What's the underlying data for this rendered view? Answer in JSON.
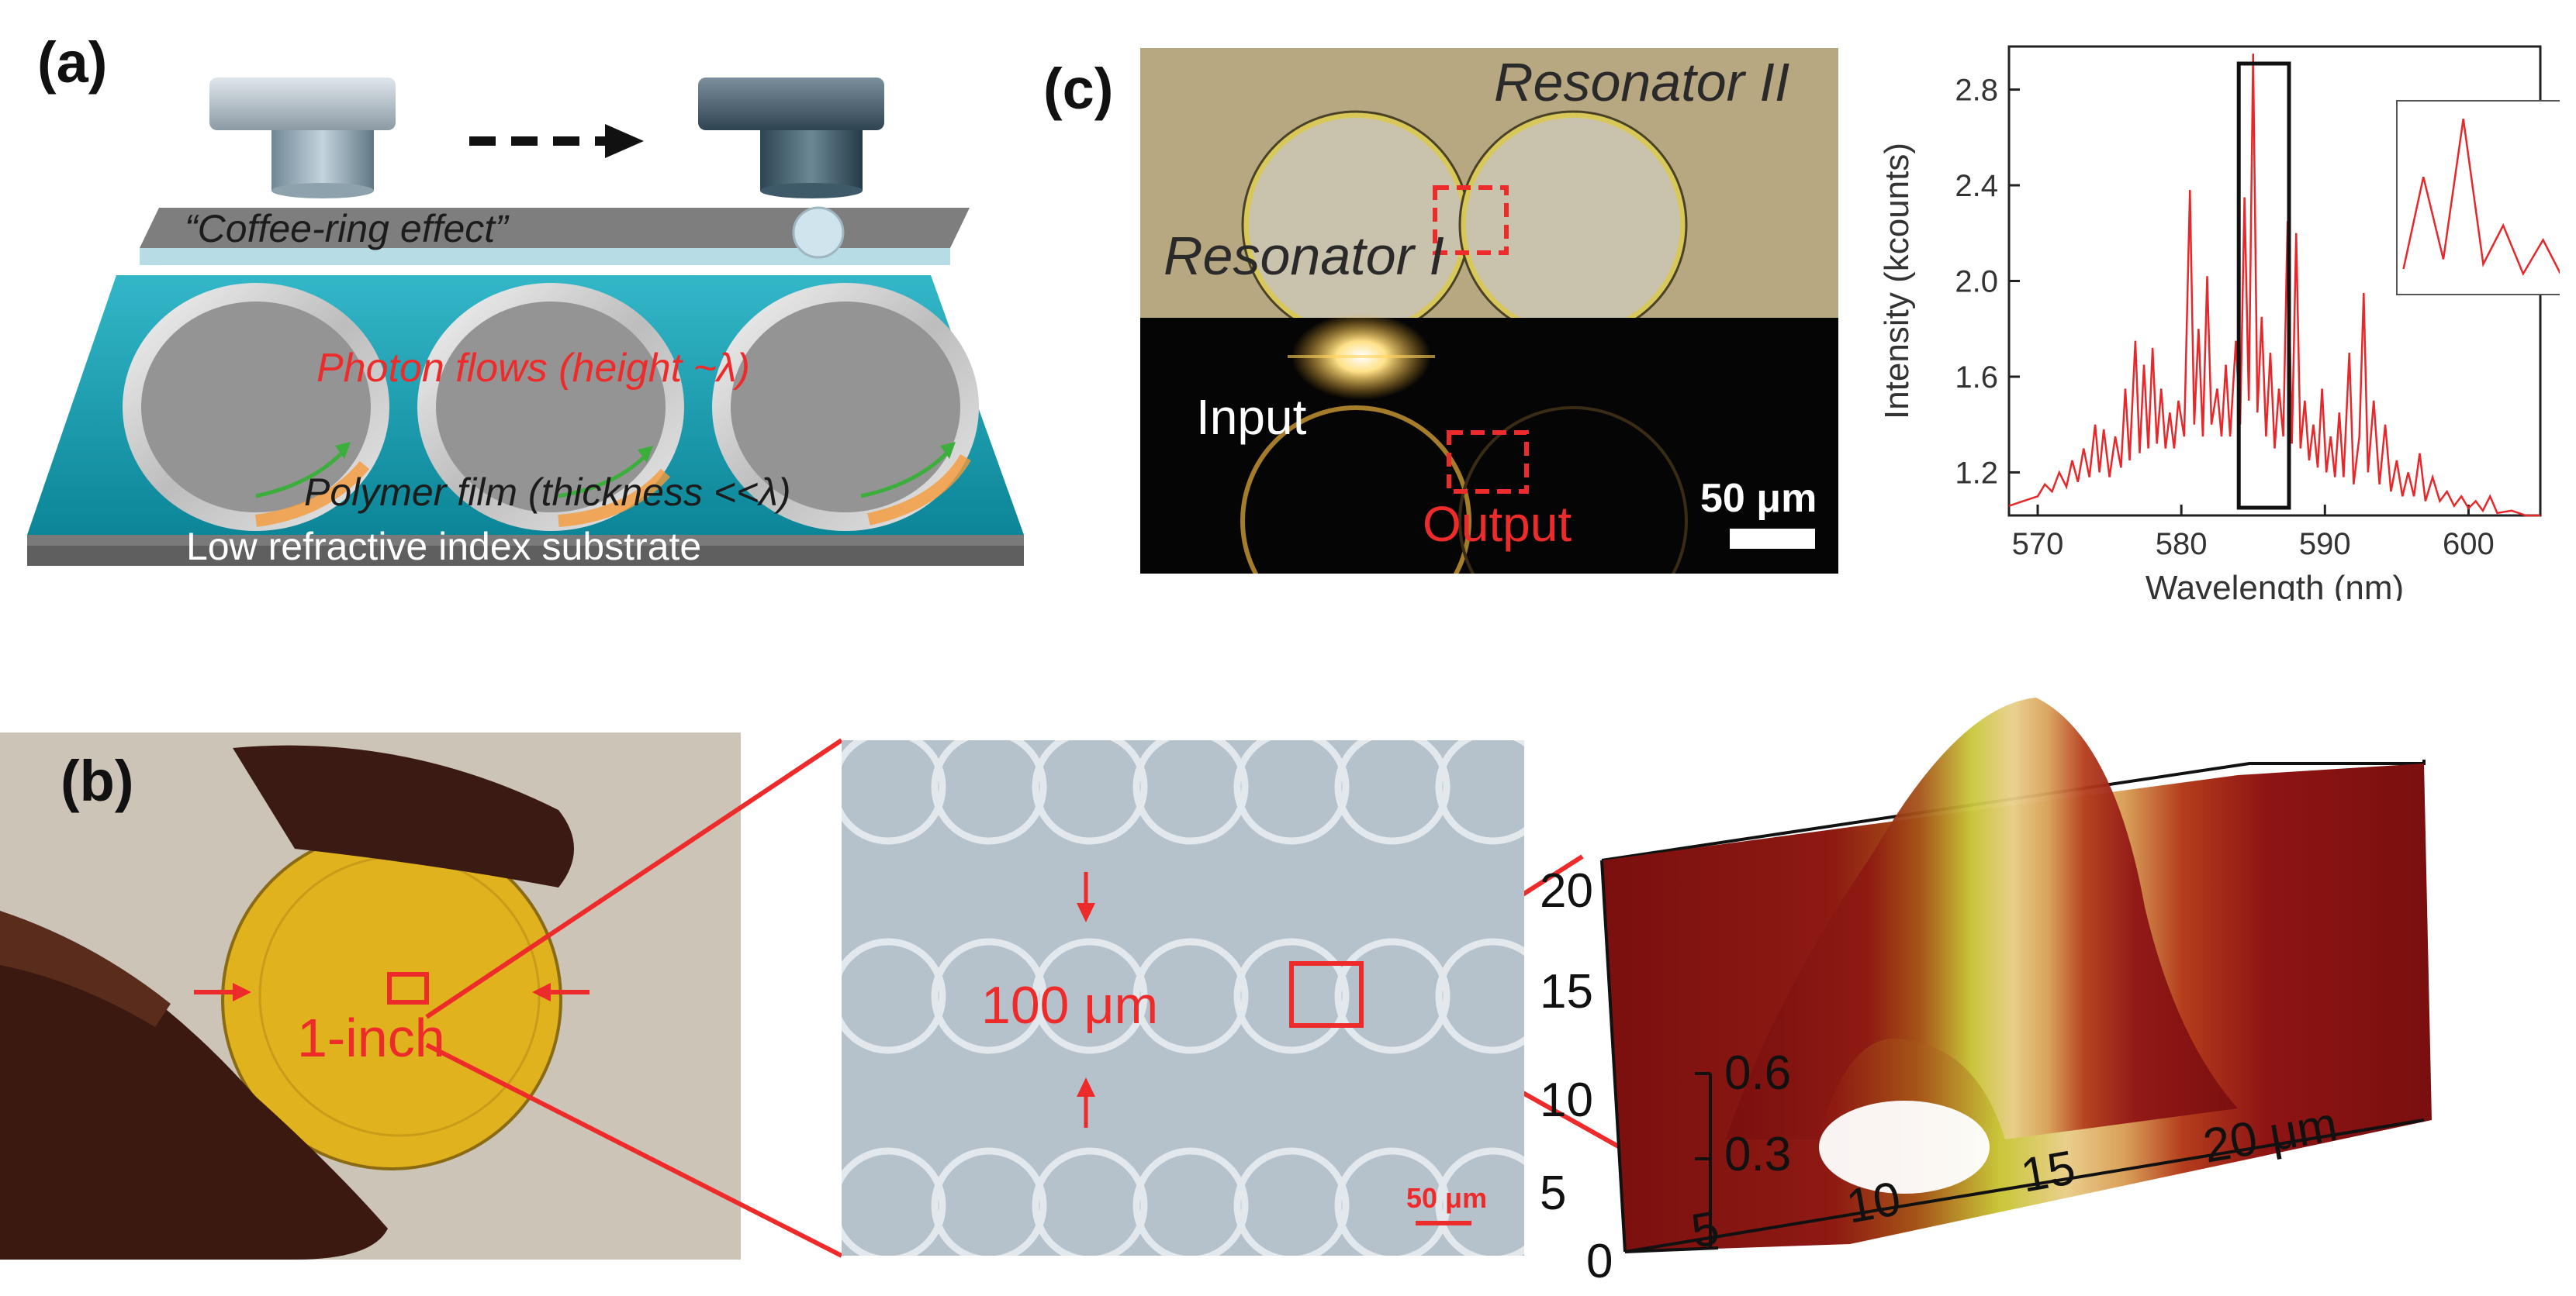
{
  "panel_a": {
    "label": "(a)",
    "coffee_ring": "“Coffee-ring effect”",
    "photon_flows": "Photon flows (height ~λ)",
    "polymer_film": "Polymer film (thickness <<λ)",
    "substrate": "Low refractive index substrate"
  },
  "panel_b": {
    "label": "(b)",
    "wafer_size": "1-inch",
    "pitch": "100 μm",
    "scale_bar": "50 μm",
    "afm_x_ticks": [
      "0",
      "5",
      "10",
      "15",
      "20 μm"
    ],
    "afm_y_ticks": [
      "5",
      "10",
      "15",
      "20"
    ],
    "afm_z_ticks": [
      "0.3",
      "0.6"
    ]
  },
  "panel_c": {
    "label": "(c)",
    "resonator_1": "Resonator I",
    "resonator_2": "Resonator II",
    "input": "Input",
    "output": "Output",
    "scale_bar": "50 μm"
  },
  "colors": {
    "annotation_red": "#ee2b2b",
    "substrate_teal": "#1aa0b4",
    "afm_red": "#8e1414"
  },
  "chart_data": {
    "type": "line",
    "title": "",
    "xlabel": "Wavelength (nm)",
    "ylabel": "Intensity (kcounts)",
    "xlim": [
      568,
      605
    ],
    "ylim": [
      1.02,
      2.98
    ],
    "x_ticks": [
      570,
      580,
      590,
      600
    ],
    "y_ticks": [
      1.2,
      1.6,
      2.0,
      2.4,
      2.8
    ],
    "x_tick_labels": [
      "570",
      "580",
      "590",
      "600"
    ],
    "y_tick_labels": [
      "1.2",
      "1.6",
      "2.0",
      "2.4",
      "2.8"
    ],
    "highlight_range": [
      584.0,
      587.5
    ],
    "inset_range": [
      584.0,
      587.5
    ],
    "series": [
      {
        "color": "#e8272b",
        "points": [
          [
            568.0,
            1.06
          ],
          [
            569.0,
            1.08
          ],
          [
            570.0,
            1.1
          ],
          [
            570.5,
            1.15
          ],
          [
            571.0,
            1.12
          ],
          [
            571.5,
            1.2
          ],
          [
            572.0,
            1.14
          ],
          [
            572.4,
            1.25
          ],
          [
            572.8,
            1.16
          ],
          [
            573.2,
            1.3
          ],
          [
            573.6,
            1.18
          ],
          [
            574.0,
            1.4
          ],
          [
            574.3,
            1.2
          ],
          [
            574.6,
            1.38
          ],
          [
            575.0,
            1.18
          ],
          [
            575.4,
            1.35
          ],
          [
            575.8,
            1.22
          ],
          [
            576.1,
            1.55
          ],
          [
            576.4,
            1.25
          ],
          [
            576.8,
            1.75
          ],
          [
            577.1,
            1.28
          ],
          [
            577.4,
            1.65
          ],
          [
            577.7,
            1.3
          ],
          [
            578.0,
            1.72
          ],
          [
            578.3,
            1.32
          ],
          [
            578.6,
            1.55
          ],
          [
            578.9,
            1.3
          ],
          [
            579.2,
            1.45
          ],
          [
            579.5,
            1.3
          ],
          [
            579.8,
            1.5
          ],
          [
            580.2,
            1.35
          ],
          [
            580.6,
            2.38
          ],
          [
            580.9,
            1.4
          ],
          [
            581.2,
            1.8
          ],
          [
            581.5,
            1.35
          ],
          [
            581.8,
            2.02
          ],
          [
            582.1,
            1.4
          ],
          [
            582.5,
            1.55
          ],
          [
            582.8,
            1.35
          ],
          [
            583.1,
            1.65
          ],
          [
            583.4,
            1.35
          ],
          [
            583.8,
            1.75
          ],
          [
            584.1,
            1.4
          ],
          [
            584.4,
            2.35
          ],
          [
            584.7,
            1.5
          ],
          [
            585.0,
            2.95
          ],
          [
            585.3,
            1.45
          ],
          [
            585.6,
            1.85
          ],
          [
            585.9,
            1.35
          ],
          [
            586.2,
            1.7
          ],
          [
            586.5,
            1.3
          ],
          [
            586.8,
            1.55
          ],
          [
            587.1,
            1.35
          ],
          [
            587.4,
            2.25
          ],
          [
            587.7,
            1.32
          ],
          [
            588.0,
            2.2
          ],
          [
            588.3,
            1.3
          ],
          [
            588.6,
            1.5
          ],
          [
            588.9,
            1.25
          ],
          [
            589.2,
            1.4
          ],
          [
            589.5,
            1.22
          ],
          [
            589.8,
            1.55
          ],
          [
            590.1,
            1.2
          ],
          [
            590.4,
            1.35
          ],
          [
            590.7,
            1.18
          ],
          [
            591.0,
            1.45
          ],
          [
            591.3,
            1.18
          ],
          [
            591.7,
            1.7
          ],
          [
            592.0,
            1.15
          ],
          [
            592.4,
            1.35
          ],
          [
            592.7,
            1.95
          ],
          [
            593.0,
            1.2
          ],
          [
            593.4,
            1.5
          ],
          [
            593.8,
            1.15
          ],
          [
            594.2,
            1.4
          ],
          [
            594.6,
            1.12
          ],
          [
            595.0,
            1.25
          ],
          [
            595.4,
            1.1
          ],
          [
            595.8,
            1.2
          ],
          [
            596.2,
            1.1
          ],
          [
            596.6,
            1.28
          ],
          [
            597.0,
            1.08
          ],
          [
            597.5,
            1.18
          ],
          [
            598.0,
            1.08
          ],
          [
            598.5,
            1.12
          ],
          [
            599.0,
            1.06
          ],
          [
            599.5,
            1.1
          ],
          [
            600.0,
            1.05
          ],
          [
            600.5,
            1.08
          ],
          [
            601.0,
            1.04
          ],
          [
            601.5,
            1.1
          ],
          [
            602.0,
            1.03
          ],
          [
            603.0,
            1.04
          ],
          [
            604.0,
            1.02
          ],
          [
            605.0,
            1.02
          ]
        ]
      }
    ]
  }
}
